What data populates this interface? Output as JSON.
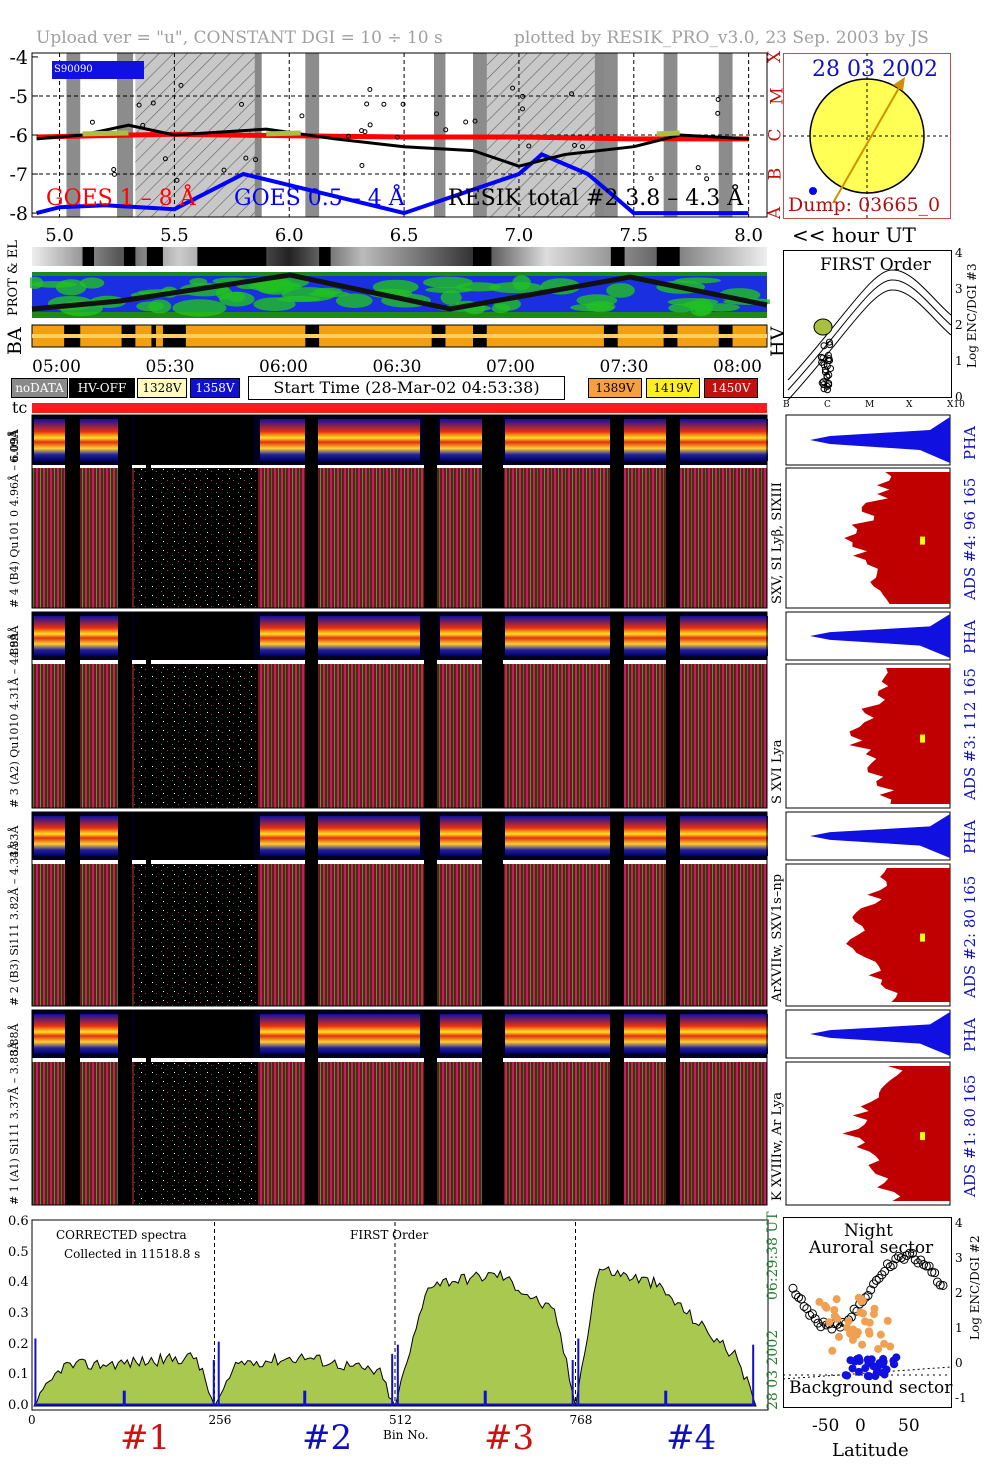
{
  "header": {
    "left": "Upload ver = \"u\", CONSTANT  DGI =  10 ÷  10 s",
    "right": "plotted by RESIK_PRO_v3.0, 23 Sep. 2003 by JS"
  },
  "goes": {
    "mini_label": "S90090",
    "labels": {
      "goes1": "GOES 1 – 8 Å",
      "goes2": "GOES 0.5 – 4 Å",
      "resik": "RESIK total #2  3.8 – 4.3 Å"
    },
    "y_ticks": [
      "-4",
      "-5",
      "-6",
      "-7",
      "-8"
    ],
    "right_ticks": [
      "X",
      "M",
      "C",
      "B",
      "A"
    ],
    "x_ticks": [
      "5.0",
      "5.5",
      "6.0",
      "6.5",
      "7.0",
      "7.5",
      "8.0"
    ],
    "x_unit": "<< hour UT",
    "colors": {
      "goes1": "#ff0000",
      "goes2": "#0000ff",
      "resik": "#000000",
      "flare": "#a8c040"
    }
  },
  "sun": {
    "date": "28 03 2002",
    "dump": "Dump: 03665_0"
  },
  "band_labels": {
    "protel": "PROT & EL",
    "ba": "BA",
    "hv": "HV",
    "tc": "tc"
  },
  "time_ticks": [
    "05:00",
    "05:30",
    "06:00",
    "06:30",
    "07:00",
    "07:30",
    "08:00"
  ],
  "legend": {
    "nodata": "noDATA",
    "hvoff": "HV-OFF",
    "v1328": "1328V",
    "v1358": "1358V",
    "start": "Start Time (28-Mar-02 04:53:38)",
    "v1389": "1389V",
    "v1419": "1419V",
    "v1450": "1450V"
  },
  "first_order": {
    "title": "FIRST Order",
    "y_label": "Log ENC/DGI #3",
    "y_ticks": [
      "4",
      "3",
      "2",
      "1",
      "0"
    ],
    "x_ticks": [
      "B",
      "C",
      "M",
      "X",
      "X10"
    ]
  },
  "channels": [
    {
      "pha_label": "6.09Å",
      "label": "# 4 (B4) Qu101 0 4.96Å – 6.09Å",
      "short": "4.96Å",
      "lines": "SXV, SI Lyβ, SIXIII",
      "ads": "ADS #4:   96 165",
      "pha": "PHA"
    },
    {
      "pha_label": "4.89Å",
      "label": "# 3 (A2) Qu1010 4.31Å – 4.89Å",
      "short": "4.31Å",
      "lines": "S XVI Lya",
      "ads": "ADS #3:   112 165",
      "pha": "PHA"
    },
    {
      "pha_label": "4.33Å",
      "label": "# 2 (B3) Si111 3.82Å – 4.33Å",
      "short": "3.82Å",
      "lines": "ArXVIIw, SXV1s–np",
      "ads": "ADS #2:   80 165",
      "pha": "PHA"
    },
    {
      "pha_label": "3.88Å",
      "label": "# 1 (A1) Si111 3.37Å – 3.88Å",
      "short": "3.37Å",
      "lines": "K XVIIIw, Ar Lya",
      "ads": "ADS #1:   80 165",
      "pha": "PHA"
    }
  ],
  "spectrum": {
    "corrected": "CORRECTED spectra",
    "collected": "Collected in 11518.8 s",
    "first_order": "FIRST Order",
    "x_label": "Bin No.",
    "x_ticks": [
      "0",
      "256",
      "512",
      "768"
    ],
    "y_ticks": [
      "0.0",
      "0.1",
      "0.2",
      "0.3",
      "0.4",
      "0.5",
      "0.6"
    ],
    "time": "06:29:38 UT",
    "date": "28 03 2002",
    "sections": [
      "#1",
      "#2",
      "#3",
      "#4"
    ]
  },
  "aurora": {
    "night": "Night",
    "auroral": "Auroral sector",
    "background": "Background sector",
    "x_label": "Latitude",
    "x_ticks": [
      "-50",
      "0",
      "50"
    ],
    "y_ticks": [
      "4",
      "3",
      "2",
      "1",
      "0",
      "-1"
    ],
    "y_label": "Log ENC/DGI #2"
  },
  "chart_data": [
    {
      "type": "line",
      "name": "GOES X-ray flux & RESIK total",
      "x_unit": "hour UT",
      "xlim": [
        4.88,
        8.08
      ],
      "ylim": [
        -8.1,
        -3.9
      ],
      "series": [
        {
          "name": "GOES 1 – 8 Å",
          "x": [
            4.9,
            5.5,
            6.0,
            6.5,
            7.0,
            7.5,
            8.0
          ],
          "y": [
            -6.05,
            -5.98,
            -6.02,
            -6.05,
            -6.05,
            -6.1,
            -6.1
          ]
        },
        {
          "name": "GOES 0.5 – 4 Å",
          "x": [
            4.9,
            5.0,
            5.2,
            5.5,
            5.8,
            6.5,
            7.0,
            7.1,
            7.3,
            7.5,
            8.0
          ],
          "y": [
            -8.0,
            -7.85,
            -7.8,
            -7.9,
            -7.0,
            -8.0,
            -7.0,
            -6.5,
            -7.0,
            -8.0,
            -8.0
          ]
        },
        {
          "name": "RESIK total #2  3.8 – 4.3 Å",
          "x": [
            4.9,
            5.1,
            5.3,
            5.5,
            5.9,
            6.2,
            6.5,
            6.8,
            7.0,
            7.2,
            7.5,
            7.7,
            8.0
          ],
          "y": [
            -6.1,
            -6.0,
            -5.75,
            -6.0,
            -5.85,
            -6.1,
            -6.3,
            -6.4,
            -6.8,
            -6.5,
            -6.3,
            -6.0,
            -6.1
          ]
        }
      ]
    },
    {
      "type": "area",
      "name": "CORRECTED spectra",
      "x_label": "Bin No.",
      "xlim": [
        0,
        1024
      ],
      "ylim": [
        0,
        0.6
      ],
      "series": [
        {
          "name": "#1",
          "x": [
            0,
            40,
            128,
            230,
            256
          ],
          "y": [
            0.0,
            0.13,
            0.14,
            0.16,
            0.0
          ]
        },
        {
          "name": "#2",
          "x": [
            256,
            290,
            384,
            490,
            512
          ],
          "y": [
            0.0,
            0.14,
            0.16,
            0.11,
            0.0
          ]
        },
        {
          "name": "#3",
          "x": [
            512,
            560,
            660,
            740,
            768
          ],
          "y": [
            0.0,
            0.4,
            0.43,
            0.3,
            0.0
          ]
        },
        {
          "name": "#4",
          "x": [
            768,
            800,
            880,
            1000,
            1024
          ],
          "y": [
            0.0,
            0.45,
            0.4,
            0.15,
            0.0
          ]
        }
      ]
    }
  ]
}
